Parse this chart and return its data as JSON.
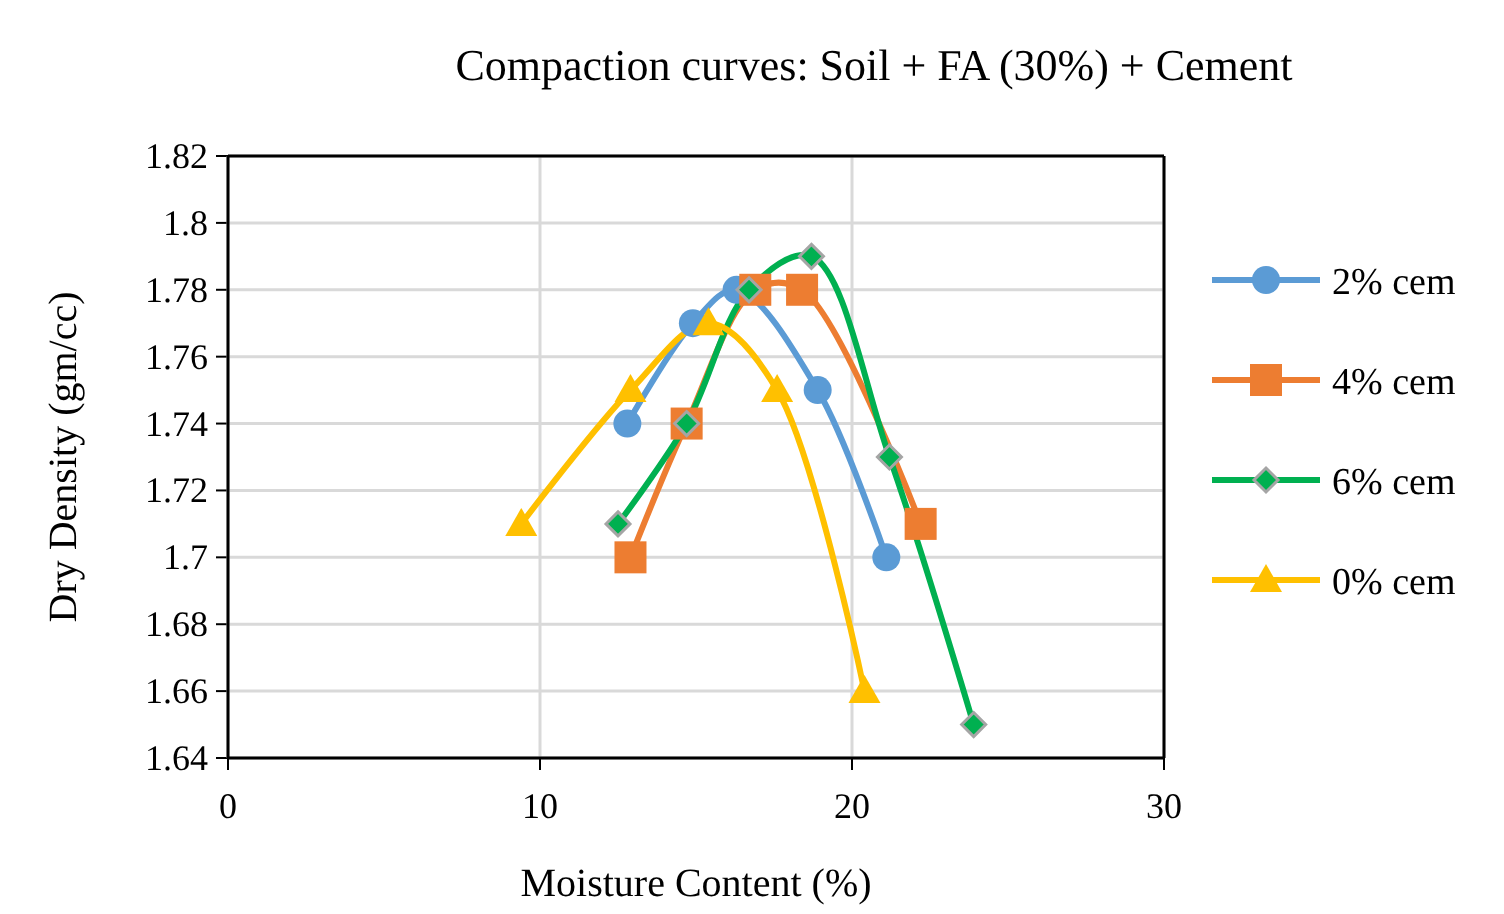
{
  "chart_data": {
    "type": "line",
    "title": "Compaction curves: Soil + FA (30%) + Cement",
    "xlabel": "Moisture Content (%)",
    "ylabel": "Dry Density (gm/cc)",
    "xlim": [
      0,
      30
    ],
    "xticks": [
      0,
      10,
      20,
      30
    ],
    "ylim": [
      1.64,
      1.82
    ],
    "yticks": [
      1.64,
      1.66,
      1.68,
      1.7,
      1.72,
      1.74,
      1.76,
      1.78,
      1.8,
      1.82
    ],
    "grid": true,
    "legend": "right",
    "line_style": "solid",
    "series": [
      {
        "name": "2% cem",
        "color": "#5b9bd5",
        "marker": "circle",
        "x": [
          12.8,
          14.9,
          16.3,
          18.9,
          21.1
        ],
        "values": [
          1.74,
          1.77,
          1.78,
          1.75,
          1.7
        ]
      },
      {
        "name": "4% cem",
        "color": "#ed7d31",
        "marker": "square",
        "x": [
          12.9,
          14.7,
          16.9,
          18.4,
          22.2
        ],
        "values": [
          1.7,
          1.74,
          1.78,
          1.78,
          1.71
        ]
      },
      {
        "name": "6% cem",
        "color": "#00b050",
        "marker": "diamond",
        "x": [
          12.5,
          14.7,
          16.7,
          18.7,
          21.2,
          23.9
        ],
        "values": [
          1.71,
          1.74,
          1.78,
          1.79,
          1.73,
          1.65
        ]
      },
      {
        "name": "0% cem",
        "color": "#ffc000",
        "marker": "triangle",
        "x": [
          9.4,
          12.9,
          15.4,
          17.6,
          20.4
        ],
        "values": [
          1.71,
          1.75,
          1.77,
          1.75,
          1.66
        ]
      }
    ]
  }
}
